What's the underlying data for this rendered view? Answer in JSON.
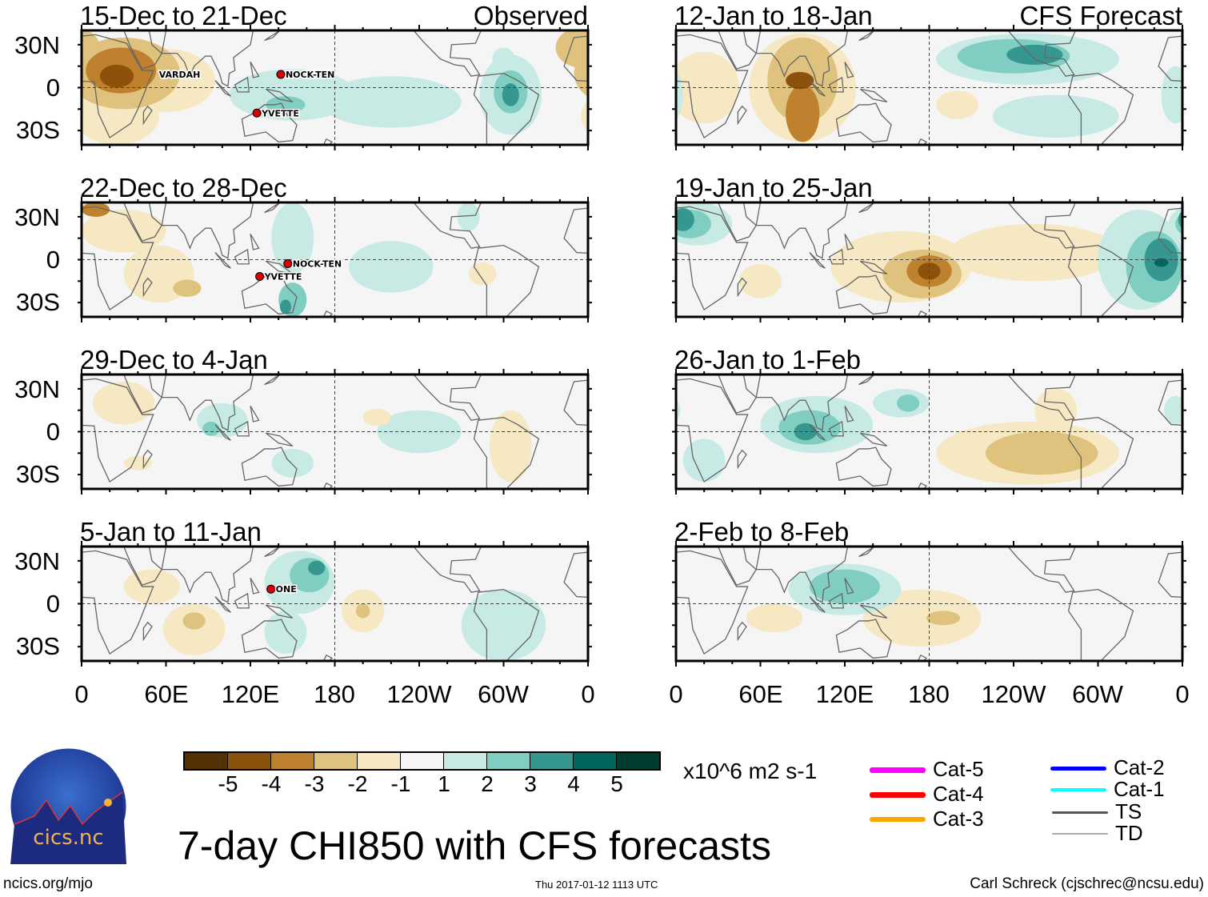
{
  "header": {
    "left_label": "Observed",
    "right_label": "CFS Forecast"
  },
  "panels": [
    {
      "title": "15-Dec to 21-Dec",
      "storms": [
        {
          "name": "VARDAH"
        },
        {
          "name": "NOCK-TEN"
        },
        {
          "name": "YVETTE"
        }
      ]
    },
    {
      "title": "22-Dec to 28-Dec",
      "storms": [
        {
          "name": "NOCK-TEN"
        },
        {
          "name": "YVETTE"
        }
      ]
    },
    {
      "title": "29-Dec to 4-Jan",
      "storms": []
    },
    {
      "title": "5-Jan to 11-Jan",
      "storms": [
        {
          "name": "ONE"
        }
      ]
    },
    {
      "title": "12-Jan to 18-Jan",
      "storms": []
    },
    {
      "title": "19-Jan to 25-Jan",
      "storms": []
    },
    {
      "title": "26-Jan to 1-Feb",
      "storms": []
    },
    {
      "title": "2-Feb to 8-Feb",
      "storms": []
    }
  ],
  "chart_data": {
    "type": "heatmap",
    "title": "7-day CHI850 with CFS forecasts",
    "units": "x10^6 m2 s-1",
    "lat_ticks": [
      "30N",
      "0",
      "30S"
    ],
    "lon_ticks": [
      "0",
      "60E",
      "120E",
      "180",
      "120W",
      "60W",
      "0"
    ],
    "lat_range": [
      -40,
      40
    ],
    "lon_range": [
      0,
      360
    ],
    "colorbar": {
      "tick_labels": [
        "-5",
        "-4",
        "-3",
        "-2",
        "-1",
        "1",
        "2",
        "3",
        "4",
        "5"
      ],
      "colors": [
        "#543005",
        "#8c510a",
        "#bf812d",
        "#dfc27d",
        "#f6e8c3",
        "#f5f5f5",
        "#c7eae5",
        "#80cdc1",
        "#35978f",
        "#01665e",
        "#003c30"
      ]
    },
    "storm_legend": [
      {
        "label": "Cat-5",
        "color": "#ff00ff"
      },
      {
        "label": "Cat-4",
        "color": "#ff0000"
      },
      {
        "label": "Cat-3",
        "color": "#ffa500"
      },
      {
        "label": "Cat-2",
        "color": "#0000ff"
      },
      {
        "label": "Cat-1",
        "color": "#00ffff"
      },
      {
        "label": "TS",
        "color": "#555555"
      },
      {
        "label": "TD",
        "color": "#aaaaaa"
      }
    ]
  },
  "footer": {
    "logo_text": "cics.nc",
    "logo_ring_text": "Cooperative Institute for Climate and Satellites",
    "url": "ncics.org/mjo",
    "timestamp": "Thu 2017-01-12 1113 UTC",
    "credit": "Carl Schreck (cjschrec@ncsu.edu)"
  }
}
